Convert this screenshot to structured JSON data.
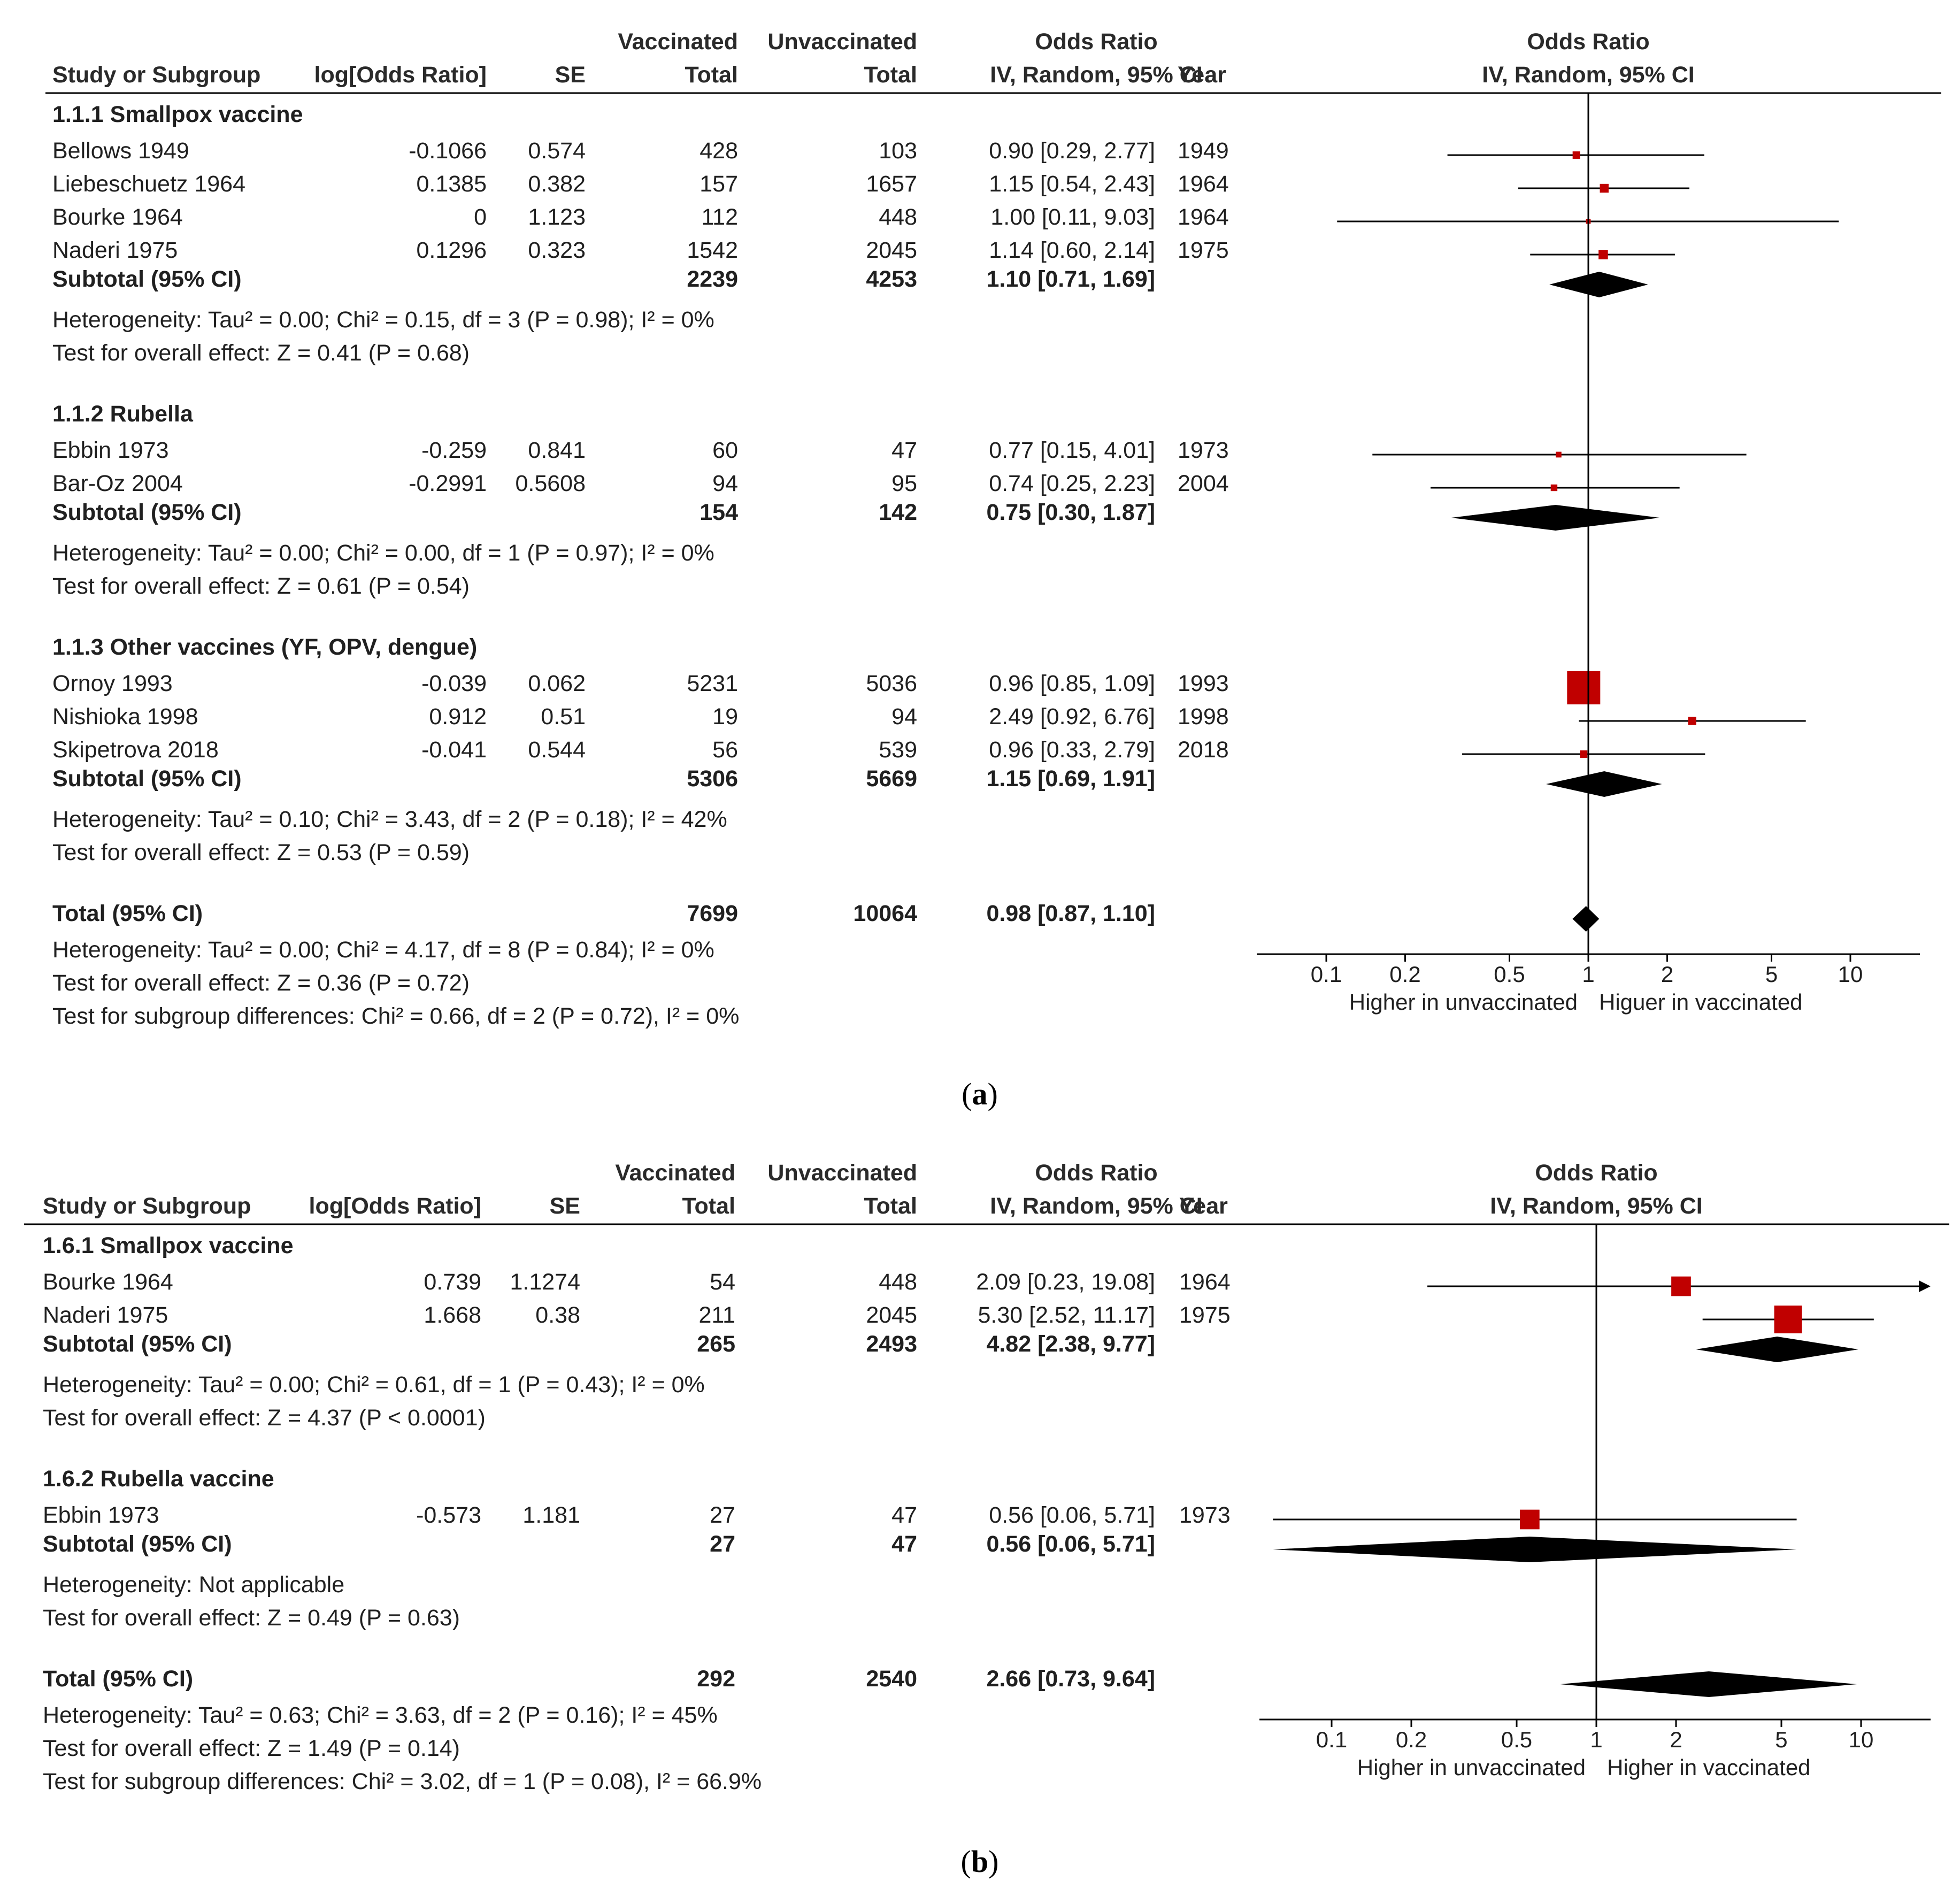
{
  "colors": {
    "marker": "#c00000",
    "diamond": "#000000",
    "line": "#000000"
  },
  "chart_data": [
    {
      "type": "forest",
      "panel_label": "a",
      "columns": {
        "study": "Study or Subgroup",
        "log_or": "log[Odds Ratio]",
        "se": "SE",
        "vacc_top": "Vaccinated",
        "vacc_total": "Total",
        "unvacc_top": "Unvaccinated",
        "unvacc_total": "Total",
        "or_top": "Odds Ratio",
        "or_method": "IV, Random, 95% CI",
        "year": "Year",
        "plot_top": "Odds Ratio",
        "plot_method": "IV, Random, 95% CI"
      },
      "x_axis": {
        "scale": "log",
        "range": [
          0.05,
          20
        ],
        "ticks": [
          0.1,
          0.2,
          0.5,
          1,
          2,
          5,
          10
        ],
        "tick_labels": [
          "0.1",
          "0.2",
          "0.5",
          "1",
          "2",
          "5",
          "10"
        ],
        "label_left": "Higher in unvaccinated",
        "label_right": "Higuer in vaccinated"
      },
      "groups": [
        {
          "title": "1.1.1 Smallpox vaccine",
          "studies": [
            {
              "name": "Bellows 1949",
              "log_or": "-0.1066",
              "se": "0.574",
              "vacc": "428",
              "unvacc": "103",
              "or_text": "0.90 [0.29, 2.77]",
              "year": "1949",
              "or": 0.9,
              "lo": 0.29,
              "hi": 2.77,
              "weight": 0.05,
              "arrow": false
            },
            {
              "name": "Liebeschuetz 1964",
              "log_or": "0.1385",
              "se": "0.382",
              "vacc": "157",
              "unvacc": "1657",
              "or_text": "1.15 [0.54, 2.43]",
              "year": "1964",
              "or": 1.15,
              "lo": 0.54,
              "hi": 2.43,
              "weight": 0.07,
              "arrow": false
            },
            {
              "name": "Bourke 1964",
              "log_or": "0",
              "se": "1.123",
              "vacc": "112",
              "unvacc": "448",
              "or_text": "1.00 [0.11, 9.03]",
              "year": "1964",
              "or": 1.0,
              "lo": 0.11,
              "hi": 9.03,
              "weight": 0.02,
              "arrow": false
            },
            {
              "name": "Naderi 1975",
              "log_or": "0.1296",
              "se": "0.323",
              "vacc": "1542",
              "unvacc": "2045",
              "or_text": "1.14 [0.60, 2.14]",
              "year": "1975",
              "or": 1.14,
              "lo": 0.6,
              "hi": 2.14,
              "weight": 0.08,
              "arrow": false
            }
          ],
          "subtotal": {
            "label": "Subtotal (95% CI)",
            "vacc": "2239",
            "unvacc": "4253",
            "or_text": "1.10 [0.71, 1.69]",
            "or": 1.1,
            "lo": 0.71,
            "hi": 1.69
          },
          "heterogeneity": "Heterogeneity: Tau² = 0.00; Chi² = 0.15, df = 3 (P = 0.98); I² = 0%",
          "overall": "Test for overall effect: Z = 0.41 (P = 0.68)"
        },
        {
          "title": "1.1.2 Rubella",
          "studies": [
            {
              "name": "Ebbin 1973",
              "log_or": "-0.259",
              "se": "0.841",
              "vacc": "60",
              "unvacc": "47",
              "or_text": "0.77 [0.15, 4.01]",
              "year": "1973",
              "or": 0.77,
              "lo": 0.15,
              "hi": 4.01,
              "weight": 0.03,
              "arrow": false
            },
            {
              "name": "Bar-Oz 2004",
              "log_or": "-0.2991",
              "se": "0.5608",
              "vacc": "94",
              "unvacc": "95",
              "or_text": "0.74 [0.25, 2.23]",
              "year": "2004",
              "or": 0.74,
              "lo": 0.25,
              "hi": 2.23,
              "weight": 0.04,
              "arrow": false
            }
          ],
          "subtotal": {
            "label": "Subtotal (95% CI)",
            "vacc": "154",
            "unvacc": "142",
            "or_text": "0.75 [0.30, 1.87]",
            "or": 0.75,
            "lo": 0.3,
            "hi": 1.87
          },
          "heterogeneity": "Heterogeneity: Tau² = 0.00; Chi² = 0.00, df = 1 (P = 0.97); I² = 0%",
          "overall": "Test for overall effect: Z = 0.61 (P = 0.54)"
        },
        {
          "title": "1.1.3 Other vaccines (YF, OPV, dengue)",
          "studies": [
            {
              "name": "Ornoy 1993",
              "log_or": "-0.039",
              "se": "0.062",
              "vacc": "5231",
              "unvacc": "5036",
              "or_text": "0.96 [0.85, 1.09]",
              "year": "1993",
              "or": 0.96,
              "lo": 0.85,
              "hi": 1.09,
              "weight": 1.0,
              "arrow": false
            },
            {
              "name": "Nishioka 1998",
              "log_or": "0.912",
              "se": "0.51",
              "vacc": "19",
              "unvacc": "94",
              "or_text": "2.49 [0.92, 6.76]",
              "year": "1998",
              "or": 2.49,
              "lo": 0.92,
              "hi": 6.76,
              "weight": 0.06,
              "arrow": false
            },
            {
              "name": "Skipetrova 2018",
              "log_or": "-0.041",
              "se": "0.544",
              "vacc": "56",
              "unvacc": "539",
              "or_text": "0.96 [0.33, 2.79]",
              "year": "2018",
              "or": 0.96,
              "lo": 0.33,
              "hi": 2.79,
              "weight": 0.05,
              "arrow": false
            }
          ],
          "subtotal": {
            "label": "Subtotal (95% CI)",
            "vacc": "5306",
            "unvacc": "5669",
            "or_text": "1.15 [0.69, 1.91]",
            "or": 1.15,
            "lo": 0.69,
            "hi": 1.91
          },
          "heterogeneity": "Heterogeneity: Tau² = 0.10; Chi² = 3.43, df = 2 (P = 0.18); I² = 42%",
          "overall": "Test for overall effect: Z = 0.53 (P = 0.59)"
        }
      ],
      "total": {
        "label": "Total (95% CI)",
        "vacc": "7699",
        "unvacc": "10064",
        "or_text": "0.98 [0.87, 1.10]",
        "or": 0.98,
        "lo": 0.87,
        "hi": 1.1
      },
      "footer": [
        "Heterogeneity: Tau² = 0.00; Chi² = 4.17, df = 8 (P = 0.84); I² = 0%",
        "Test for overall effect: Z = 0.36 (P = 0.72)",
        "Test for subgroup differences: Chi² = 0.66, df = 2 (P = 0.72), I² = 0%"
      ]
    },
    {
      "type": "forest",
      "panel_label": "b",
      "columns": {
        "study": "Study or Subgroup",
        "log_or": "log[Odds Ratio]",
        "se": "SE",
        "vacc_top": "Vaccinated",
        "vacc_total": "Total",
        "unvacc_top": "Unvaccinated",
        "unvacc_total": "Total",
        "or_top": "Odds Ratio",
        "or_method": "IV, Random, 95% CI",
        "year": "Year",
        "plot_top": "Odds Ratio",
        "plot_method": "IV, Random, 95% CI"
      },
      "x_axis": {
        "scale": "log",
        "range": [
          0.05,
          20
        ],
        "ticks": [
          0.1,
          0.2,
          0.5,
          1,
          2,
          5,
          10
        ],
        "tick_labels": [
          "0.1",
          "0.2",
          "0.5",
          "1",
          "2",
          "5",
          "10"
        ],
        "label_left": "Higher in unvaccinated",
        "label_right": "Higher in vaccinated"
      },
      "groups": [
        {
          "title": "1.6.1 Smallpox vaccine",
          "studies": [
            {
              "name": "Bourke 1964",
              "log_or": "0.739",
              "se": "1.1274",
              "vacc": "54",
              "unvacc": "448",
              "or_text": "2.09 [0.23, 19.08]",
              "year": "1964",
              "or": 2.09,
              "lo": 0.23,
              "hi": 19.08,
              "weight": 0.35,
              "arrow": true
            },
            {
              "name": "Naderi 1975",
              "log_or": "1.668",
              "se": "0.38",
              "vacc": "211",
              "unvacc": "2045",
              "or_text": "5.30 [2.52, 11.17]",
              "year": "1975",
              "or": 5.3,
              "lo": 2.52,
              "hi": 11.17,
              "weight": 0.7,
              "arrow": false
            }
          ],
          "subtotal": {
            "label": "Subtotal (95% CI)",
            "vacc": "265",
            "unvacc": "2493",
            "or_text": "4.82 [2.38, 9.77]",
            "or": 4.82,
            "lo": 2.38,
            "hi": 9.77
          },
          "heterogeneity": "Heterogeneity: Tau² = 0.00; Chi² = 0.61, df = 1 (P = 0.43); I² = 0%",
          "overall": "Test for overall effect: Z = 4.37 (P < 0.0001)"
        },
        {
          "title": "1.6.2 Rubella vaccine",
          "studies": [
            {
              "name": "Ebbin 1973",
              "log_or": "-0.573",
              "se": "1.181",
              "vacc": "27",
              "unvacc": "47",
              "or_text": "0.56 [0.06, 5.71]",
              "year": "1973",
              "or": 0.56,
              "lo": 0.06,
              "hi": 5.71,
              "weight": 0.35,
              "arrow": false
            }
          ],
          "subtotal": {
            "label": "Subtotal (95% CI)",
            "vacc": "27",
            "unvacc": "47",
            "or_text": "0.56 [0.06, 5.71]",
            "or": 0.56,
            "lo": 0.06,
            "hi": 5.71
          },
          "heterogeneity": "Heterogeneity: Not applicable",
          "overall": "Test for overall effect: Z = 0.49 (P = 0.63)"
        }
      ],
      "total": {
        "label": "Total (95% CI)",
        "vacc": "292",
        "unvacc": "2540",
        "or_text": "2.66 [0.73, 9.64]",
        "or": 2.66,
        "lo": 0.73,
        "hi": 9.64
      },
      "footer": [
        "Heterogeneity: Tau² = 0.63; Chi² = 3.63, df = 2 (P = 0.16); I² = 45%",
        "Test for overall effect: Z = 1.49 (P = 0.14)",
        "Test for subgroup differences: Chi² = 3.02, df = 1 (P = 0.08), I² = 66.9%"
      ]
    }
  ]
}
